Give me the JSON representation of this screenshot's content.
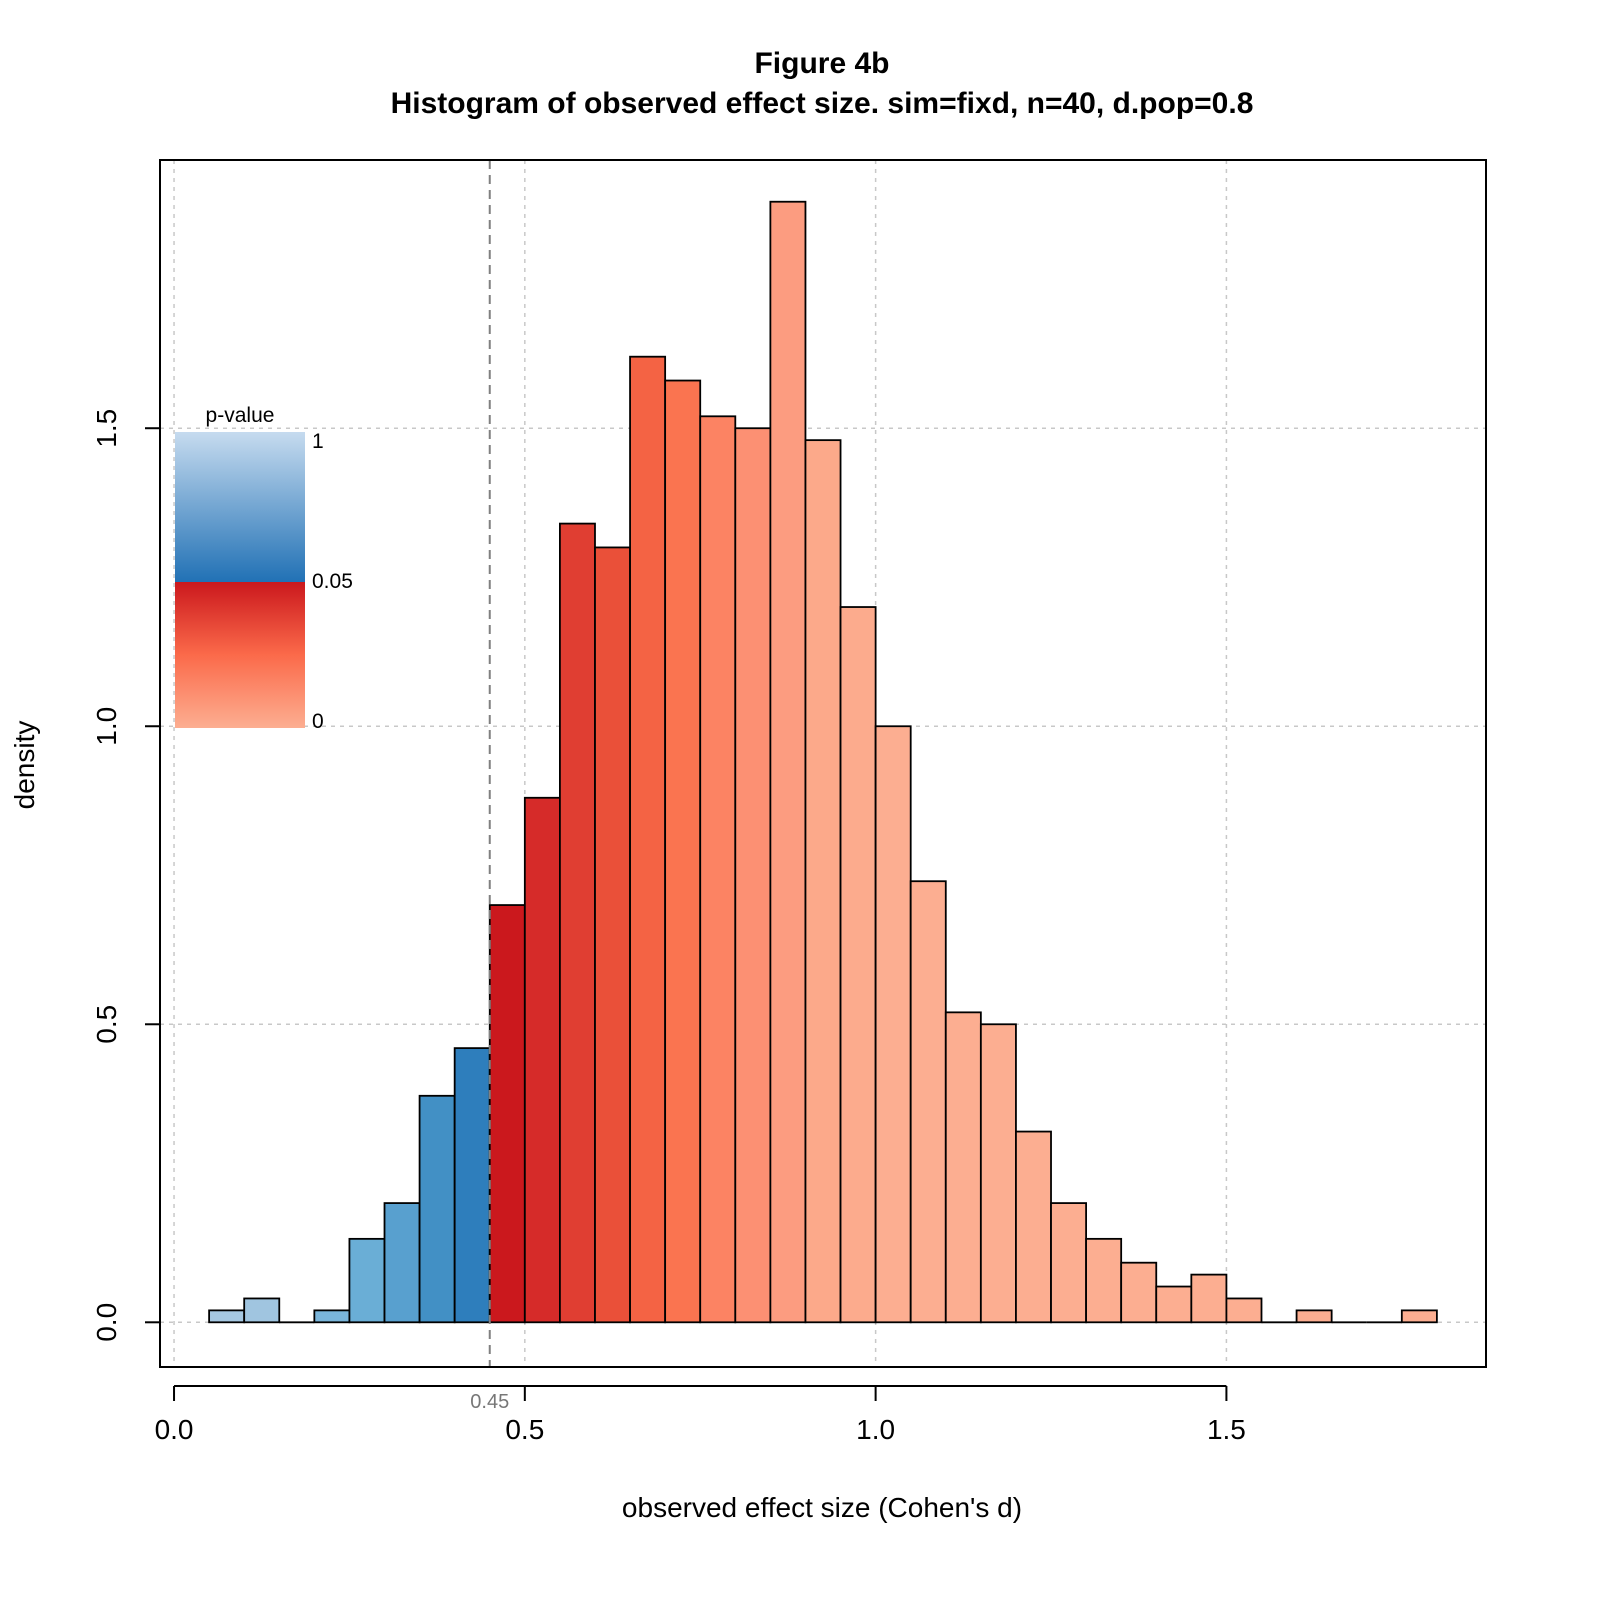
{
  "chart_data": {
    "type": "bar",
    "title": "Figure 4b",
    "subtitle": "Histogram of observed effect size. sim=fixd, n=40, d.pop=0.8",
    "xlabel": "observed effect size (Cohen's d)",
    "ylabel": "density",
    "xlim": [
      -0.02,
      1.87
    ],
    "ylim": [
      -0.075,
      1.95
    ],
    "x_ticks": [
      0.0,
      0.5,
      1.0,
      1.5
    ],
    "x_tick_labels": [
      "0.0",
      "0.5",
      "1.0",
      "1.5"
    ],
    "y_ticks": [
      0.0,
      0.5,
      1.0,
      1.5
    ],
    "y_tick_labels": [
      "0.0",
      "0.5",
      "1.0",
      "1.5"
    ],
    "grid": true,
    "bin_width": 0.05,
    "bin_start": [
      0.05,
      0.1,
      0.15,
      0.2,
      0.25,
      0.3,
      0.35,
      0.4,
      0.45,
      0.5,
      0.55,
      0.6,
      0.65,
      0.7,
      0.75,
      0.8,
      0.85,
      0.9,
      0.95,
      1.0,
      1.05,
      1.1,
      1.15,
      1.2,
      1.25,
      1.3,
      1.35,
      1.4,
      1.45,
      1.5,
      1.55,
      1.6,
      1.65,
      1.7,
      1.75
    ],
    "density": [
      0.02,
      0.04,
      0.0,
      0.02,
      0.14,
      0.2,
      0.38,
      0.46,
      0.7,
      0.88,
      1.34,
      1.3,
      1.62,
      1.58,
      1.52,
      1.5,
      1.88,
      1.48,
      1.2,
      1.0,
      0.74,
      0.52,
      0.5,
      0.32,
      0.2,
      0.14,
      0.1,
      0.06,
      0.08,
      0.04,
      0.0,
      0.02,
      0.0,
      0.0,
      0.02
    ],
    "bar_colors": [
      "#a6c8e2",
      "#a0c5e0",
      "#a0c5e0",
      "#7ab5da",
      "#6aaed6",
      "#58a0cf",
      "#4290c5",
      "#2e7ebc",
      "#cb181d",
      "#d62b29",
      "#e03e32",
      "#ea5039",
      "#f46344",
      "#fa7450",
      "#fc8363",
      "#fc9073",
      "#fc9c80",
      "#fca98a",
      "#fcab8d",
      "#fcae91",
      "#fcae91",
      "#fcae91",
      "#fcae91",
      "#fcae91",
      "#fcae91",
      "#fcae91",
      "#fcae91",
      "#fcae91",
      "#fcae91",
      "#fcae91",
      "#fcae91",
      "#fcae91",
      "#fcae91",
      "#fcae91",
      "#fcae91"
    ],
    "reference_line": {
      "x": 0.45,
      "label": "0.45"
    },
    "legend": {
      "title": "p-value",
      "placement": "top-left",
      "labels": [
        "1",
        "0.05",
        "0"
      ],
      "blue_gradient": [
        "#c6dbef",
        "#2171b5"
      ],
      "red_gradient": [
        "#cb181d",
        "#fb6a4a",
        "#fcae91"
      ]
    }
  }
}
